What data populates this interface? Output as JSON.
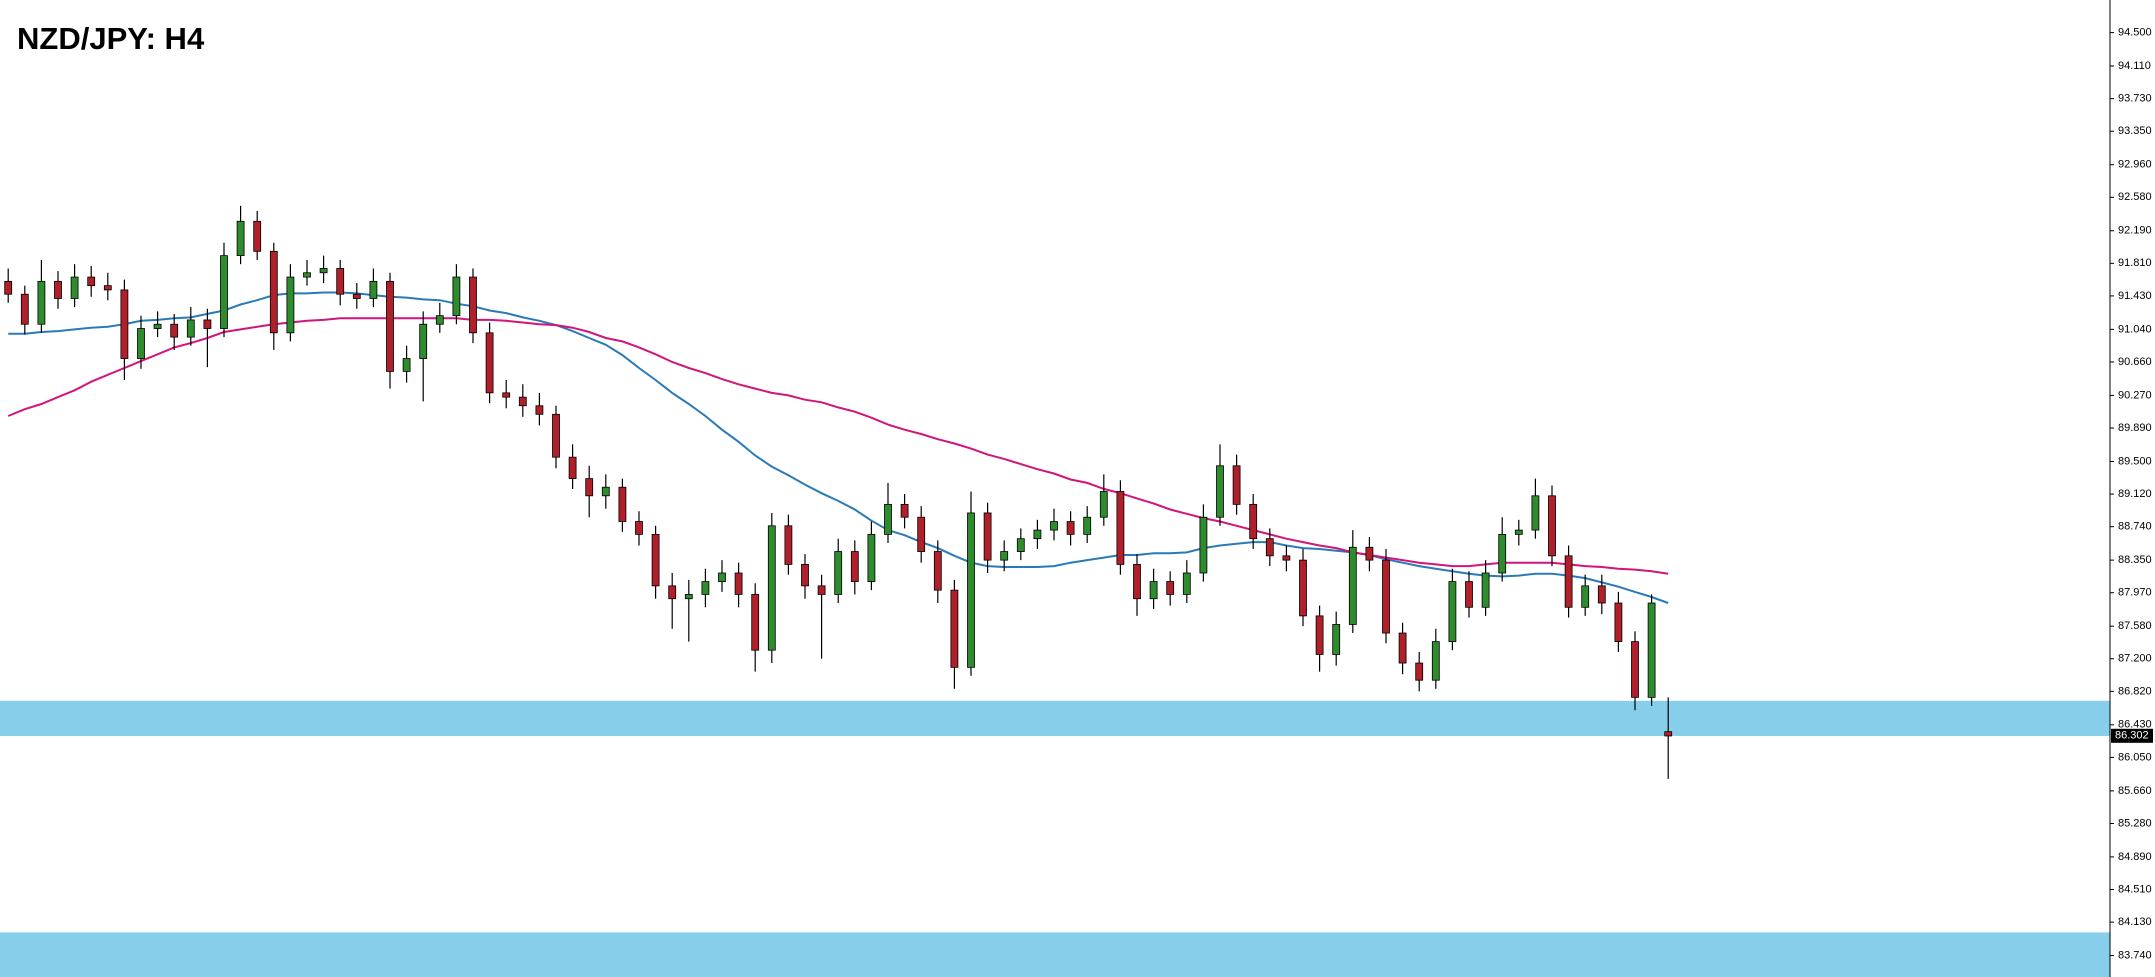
{
  "chart_data": {
    "type": "candlestick",
    "title": "NZD/JPY: H4",
    "ylim": [
      83.49,
      94.88
    ],
    "yticks": [
      {
        "value": 94.5,
        "label": "94.500"
      },
      {
        "value": 94.11,
        "label": "94.110"
      },
      {
        "value": 93.73,
        "label": "93.730"
      },
      {
        "value": 93.35,
        "label": "93.350"
      },
      {
        "value": 92.96,
        "label": "92.960"
      },
      {
        "value": 92.58,
        "label": "92.580"
      },
      {
        "value": 92.19,
        "label": "92.190"
      },
      {
        "value": 91.81,
        "label": "91.810"
      },
      {
        "value": 91.43,
        "label": "91.430"
      },
      {
        "value": 91.04,
        "label": "91.040"
      },
      {
        "value": 90.66,
        "label": "90.660"
      },
      {
        "value": 90.27,
        "label": "90.270"
      },
      {
        "value": 89.89,
        "label": "89.890"
      },
      {
        "value": 89.5,
        "label": "89.500"
      },
      {
        "value": 89.12,
        "label": "89.120"
      },
      {
        "value": 88.74,
        "label": "88.740"
      },
      {
        "value": 88.35,
        "label": "88.350"
      },
      {
        "value": 87.97,
        "label": "87.970"
      },
      {
        "value": 87.58,
        "label": "87.580"
      },
      {
        "value": 87.2,
        "label": "87.200"
      },
      {
        "value": 86.82,
        "label": "86.820"
      },
      {
        "value": 86.43,
        "label": "86.430"
      },
      {
        "value": 86.05,
        "label": "86.050"
      },
      {
        "value": 85.66,
        "label": "85.660"
      },
      {
        "value": 85.28,
        "label": "85.280"
      },
      {
        "value": 84.89,
        "label": "84.890"
      },
      {
        "value": 84.51,
        "label": "84.510"
      },
      {
        "value": 84.13,
        "label": "84.130"
      },
      {
        "value": 83.74,
        "label": "83.740"
      }
    ],
    "last_price": 86.302,
    "up_color": "#2e8b2e",
    "down_color": "#b0202a",
    "zones": [
      {
        "from": 86.3,
        "to": 86.71,
        "color": "#87ceeb"
      },
      {
        "from": 83.49,
        "to": 84.01,
        "color": "#87ceeb"
      }
    ],
    "ohlc": [
      [
        91.6,
        91.75,
        91.35,
        91.45
      ],
      [
        91.45,
        91.55,
        90.98,
        91.1
      ],
      [
        91.1,
        91.85,
        91.0,
        91.6
      ],
      [
        91.6,
        91.72,
        91.28,
        91.4
      ],
      [
        91.4,
        91.8,
        91.3,
        91.65
      ],
      [
        91.65,
        91.78,
        91.42,
        91.55
      ],
      [
        91.55,
        91.7,
        91.38,
        91.5
      ],
      [
        91.5,
        91.62,
        90.45,
        90.7
      ],
      [
        90.7,
        91.2,
        90.58,
        91.05
      ],
      [
        91.05,
        91.25,
        90.95,
        91.1
      ],
      [
        91.1,
        91.22,
        90.8,
        90.95
      ],
      [
        90.95,
        91.3,
        90.85,
        91.15
      ],
      [
        91.15,
        91.28,
        90.6,
        91.05
      ],
      [
        91.05,
        92.05,
        90.95,
        91.9
      ],
      [
        91.9,
        92.48,
        91.8,
        92.3
      ],
      [
        92.3,
        92.42,
        91.85,
        91.95
      ],
      [
        91.95,
        92.05,
        90.8,
        91.0
      ],
      [
        91.0,
        91.8,
        90.9,
        91.65
      ],
      [
        91.65,
        91.85,
        91.55,
        91.7
      ],
      [
        91.7,
        91.9,
        91.58,
        91.75
      ],
      [
        91.75,
        91.85,
        91.32,
        91.45
      ],
      [
        91.45,
        91.58,
        91.28,
        91.4
      ],
      [
        91.4,
        91.75,
        91.3,
        91.6
      ],
      [
        91.6,
        91.7,
        90.35,
        90.55
      ],
      [
        90.55,
        90.85,
        90.42,
        90.7
      ],
      [
        90.7,
        91.25,
        90.2,
        91.1
      ],
      [
        91.1,
        91.35,
        91.0,
        91.2
      ],
      [
        91.2,
        91.8,
        91.1,
        91.65
      ],
      [
        91.65,
        91.75,
        90.88,
        91.0
      ],
      [
        91.0,
        91.12,
        90.18,
        90.3
      ],
      [
        90.3,
        90.45,
        90.12,
        90.25
      ],
      [
        90.25,
        90.4,
        90.02,
        90.15
      ],
      [
        90.15,
        90.3,
        89.92,
        90.05
      ],
      [
        90.05,
        90.15,
        89.42,
        89.55
      ],
      [
        89.55,
        89.7,
        89.18,
        89.3
      ],
      [
        89.3,
        89.45,
        88.85,
        89.1
      ],
      [
        89.1,
        89.35,
        88.95,
        89.2
      ],
      [
        89.2,
        89.3,
        88.68,
        88.8
      ],
      [
        88.8,
        88.92,
        88.52,
        88.65
      ],
      [
        88.65,
        88.75,
        87.9,
        88.05
      ],
      [
        88.05,
        88.2,
        87.55,
        87.9
      ],
      [
        87.9,
        88.12,
        87.4,
        87.95
      ],
      [
        87.95,
        88.25,
        87.8,
        88.1
      ],
      [
        88.1,
        88.35,
        87.98,
        88.2
      ],
      [
        88.2,
        88.32,
        87.8,
        87.95
      ],
      [
        87.95,
        88.08,
        87.05,
        87.3
      ],
      [
        87.3,
        88.9,
        87.15,
        88.75
      ],
      [
        88.75,
        88.88,
        88.18,
        88.3
      ],
      [
        88.3,
        88.42,
        87.9,
        88.05
      ],
      [
        88.05,
        88.18,
        87.2,
        87.95
      ],
      [
        87.95,
        88.6,
        87.85,
        88.45
      ],
      [
        88.45,
        88.58,
        87.95,
        88.1
      ],
      [
        88.1,
        88.8,
        88.0,
        88.65
      ],
      [
        88.65,
        89.25,
        88.55,
        89.0
      ],
      [
        89.0,
        89.12,
        88.72,
        88.85
      ],
      [
        88.85,
        88.98,
        88.32,
        88.45
      ],
      [
        88.45,
        88.58,
        87.85,
        88.0
      ],
      [
        88.0,
        88.12,
        86.85,
        87.1
      ],
      [
        87.1,
        89.15,
        87.0,
        88.9
      ],
      [
        88.9,
        89.02,
        88.2,
        88.35
      ],
      [
        88.35,
        88.58,
        88.22,
        88.45
      ],
      [
        88.45,
        88.72,
        88.35,
        88.6
      ],
      [
        88.6,
        88.82,
        88.48,
        88.7
      ],
      [
        88.7,
        88.95,
        88.58,
        88.8
      ],
      [
        88.8,
        88.92,
        88.52,
        88.65
      ],
      [
        88.65,
        88.98,
        88.55,
        88.85
      ],
      [
        88.85,
        89.35,
        88.75,
        89.15
      ],
      [
        89.15,
        89.28,
        88.18,
        88.3
      ],
      [
        88.3,
        88.42,
        87.7,
        87.9
      ],
      [
        87.9,
        88.25,
        87.78,
        88.1
      ],
      [
        88.1,
        88.22,
        87.82,
        87.95
      ],
      [
        87.95,
        88.35,
        87.85,
        88.2
      ],
      [
        88.2,
        89.0,
        88.1,
        88.85
      ],
      [
        88.85,
        89.7,
        88.75,
        89.45
      ],
      [
        89.45,
        89.58,
        88.88,
        89.0
      ],
      [
        89.0,
        89.12,
        88.48,
        88.6
      ],
      [
        88.6,
        88.72,
        88.28,
        88.4
      ],
      [
        88.4,
        88.52,
        88.22,
        88.35
      ],
      [
        88.35,
        88.48,
        87.58,
        87.7
      ],
      [
        87.7,
        87.82,
        87.05,
        87.25
      ],
      [
        87.25,
        87.75,
        87.12,
        87.6
      ],
      [
        87.6,
        88.7,
        87.5,
        88.5
      ],
      [
        88.5,
        88.62,
        88.22,
        88.35
      ],
      [
        88.35,
        88.48,
        87.38,
        87.5
      ],
      [
        87.5,
        87.62,
        87.02,
        87.15
      ],
      [
        87.15,
        87.28,
        86.82,
        86.95
      ],
      [
        86.95,
        87.55,
        86.85,
        87.4
      ],
      [
        87.4,
        88.25,
        87.3,
        88.1
      ],
      [
        88.1,
        88.22,
        87.68,
        87.8
      ],
      [
        87.8,
        88.35,
        87.7,
        88.2
      ],
      [
        88.2,
        88.85,
        88.1,
        88.65
      ],
      [
        88.65,
        88.82,
        88.52,
        88.7
      ],
      [
        88.7,
        89.3,
        88.6,
        89.1
      ],
      [
        89.1,
        89.22,
        88.28,
        88.4
      ],
      [
        88.4,
        88.52,
        87.68,
        87.8
      ],
      [
        87.8,
        88.18,
        87.7,
        88.05
      ],
      [
        88.05,
        88.18,
        87.72,
        87.85
      ],
      [
        87.85,
        87.98,
        87.28,
        87.4
      ],
      [
        87.4,
        87.52,
        86.6,
        86.75
      ],
      [
        86.75,
        87.95,
        86.65,
        87.85
      ],
      [
        86.35,
        86.75,
        85.8,
        86.3
      ]
    ],
    "series": [
      {
        "color": "#2a7ab8",
        "values": [
          90.99,
          90.99,
          91.01,
          91.02,
          91.04,
          91.06,
          91.07,
          91.1,
          91.14,
          91.15,
          91.17,
          91.18,
          91.22,
          91.26,
          91.33,
          91.38,
          91.44,
          91.46,
          91.46,
          91.47,
          91.47,
          91.46,
          91.44,
          91.42,
          91.41,
          91.39,
          91.38,
          91.34,
          91.31,
          91.26,
          91.23,
          91.18,
          91.14,
          91.09,
          91.02,
          90.94,
          90.86,
          90.74,
          90.59,
          90.45,
          90.3,
          90.17,
          90.03,
          89.87,
          89.73,
          89.57,
          89.44,
          89.34,
          89.23,
          89.13,
          89.04,
          88.94,
          88.81,
          88.7,
          88.64,
          88.56,
          88.49,
          88.4,
          88.32,
          88.28,
          88.27,
          88.27,
          88.27,
          88.28,
          88.32,
          88.35,
          88.38,
          88.41,
          88.41,
          88.43,
          88.43,
          88.44,
          88.49,
          88.52,
          88.54,
          88.56,
          88.56,
          88.52,
          88.49,
          88.48,
          88.46,
          88.44,
          88.41,
          88.36,
          88.32,
          88.28,
          88.25,
          88.22,
          88.19,
          88.17,
          88.16,
          88.17,
          88.19,
          88.19,
          88.17,
          88.14,
          88.09,
          88.04,
          87.98,
          87.92,
          87.85
        ]
      },
      {
        "color": "#d1157a",
        "values": [
          90.03,
          90.11,
          90.17,
          90.25,
          90.33,
          90.43,
          90.51,
          90.59,
          90.67,
          90.75,
          90.83,
          90.88,
          90.94,
          91.01,
          91.04,
          91.07,
          91.1,
          91.12,
          91.14,
          91.15,
          91.17,
          91.17,
          91.17,
          91.17,
          91.17,
          91.17,
          91.17,
          91.17,
          91.15,
          91.15,
          91.14,
          91.12,
          91.1,
          91.09,
          91.06,
          91.01,
          90.94,
          90.9,
          90.83,
          90.75,
          90.66,
          90.59,
          90.53,
          90.46,
          90.4,
          90.35,
          90.3,
          90.27,
          90.22,
          90.19,
          90.13,
          90.08,
          90.01,
          89.93,
          89.87,
          89.82,
          89.76,
          89.71,
          89.65,
          89.58,
          89.53,
          89.47,
          89.41,
          89.36,
          89.29,
          89.25,
          89.18,
          89.13,
          89.07,
          89.01,
          88.94,
          88.89,
          88.84,
          88.8,
          88.75,
          88.7,
          88.65,
          88.6,
          88.56,
          88.52,
          88.49,
          88.44,
          88.41,
          88.38,
          88.35,
          88.32,
          88.3,
          88.28,
          88.28,
          88.3,
          88.32,
          88.32,
          88.32,
          88.32,
          88.3,
          88.28,
          88.27,
          88.25,
          88.24,
          88.22,
          88.19
        ]
      }
    ]
  }
}
